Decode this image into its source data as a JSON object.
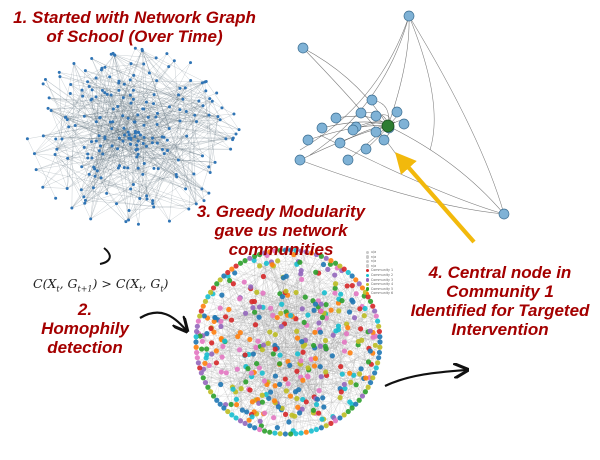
{
  "steps": {
    "step1": [
      "1. Started with Network Graph",
      "of School (Over Time)"
    ],
    "step2": [
      "2.",
      "Homophily",
      "detection"
    ],
    "step3": [
      "3. Greedy Modularity",
      "gave us network",
      "communities"
    ],
    "step4": [
      "4. Central node in",
      "Community 1",
      "Identified for Targeted",
      "Intervention"
    ]
  },
  "formula": "C(Xt, Gt+1) > C(Xt, Gt)",
  "legend": {
    "items": [
      {
        "label": "u/a",
        "color": "#c8c8c8"
      },
      {
        "label": "n/a",
        "color": "#c8c8c8"
      },
      {
        "label": "n/a",
        "color": "#c8c8c8"
      },
      {
        "label": "n/a",
        "color": "#c8c8c8"
      },
      {
        "label": "Community 1",
        "color": "#d62728"
      },
      {
        "label": "Community 2",
        "color": "#17becf"
      },
      {
        "label": "Community 3",
        "color": "#9467bd"
      },
      {
        "label": "Community 4",
        "color": "#bcbd22"
      },
      {
        "label": "Community 5",
        "color": "#2ca02c"
      },
      {
        "label": "Community 6",
        "color": "#ff7f0e"
      }
    ]
  },
  "colors": {
    "heading": "#a40000",
    "node_school": "#2f74b5",
    "node_hub": "#7fb2d6",
    "hub_central": "#2e7d32",
    "pointer_arrow": "#f2b90c",
    "connector_arrow": "#111111",
    "community_palette": [
      "#d62728",
      "#1f77b4",
      "#17becf",
      "#9467bd",
      "#2ca02c",
      "#bcbd22",
      "#ff7f0e",
      "#e377c2"
    ]
  }
}
